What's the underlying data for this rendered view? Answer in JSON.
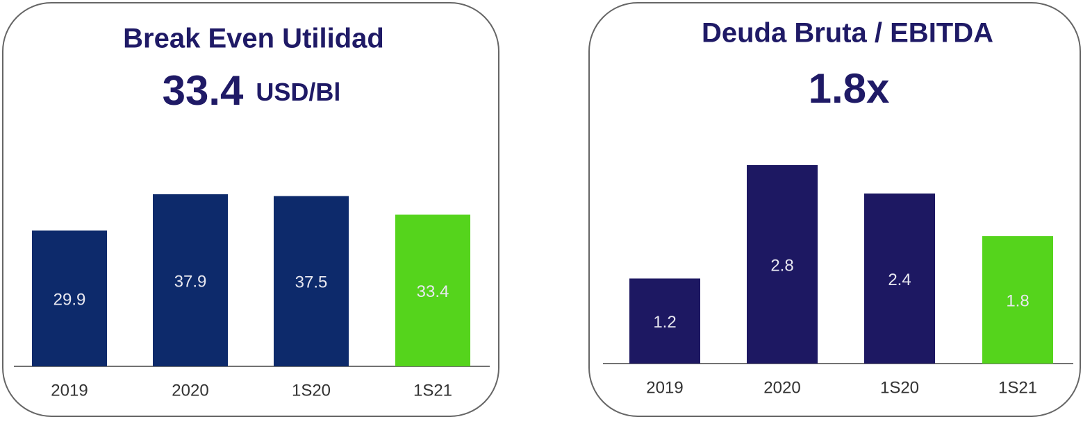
{
  "chart_data": [
    {
      "type": "bar",
      "title": "Break Even Utilidad",
      "kpi": "33.4",
      "kpi_unit": "USD/Bl",
      "categories": [
        "2019",
        "2020",
        "1S20",
        "1S21"
      ],
      "values": [
        29.9,
        37.9,
        37.5,
        33.4
      ],
      "colors": [
        "#0d2a6b",
        "#0d2a6b",
        "#0d2a6b",
        "#55d41c"
      ]
    },
    {
      "type": "bar",
      "title": "Deuda Bruta / EBITDA",
      "kpi": "1.8x",
      "categories": [
        "2019",
        "2020",
        "1S20",
        "1S21"
      ],
      "values": [
        1.2,
        2.8,
        2.4,
        1.8
      ],
      "colors": [
        "#1d1862",
        "#1d1862",
        "#1d1862",
        "#55d41c"
      ]
    }
  ]
}
